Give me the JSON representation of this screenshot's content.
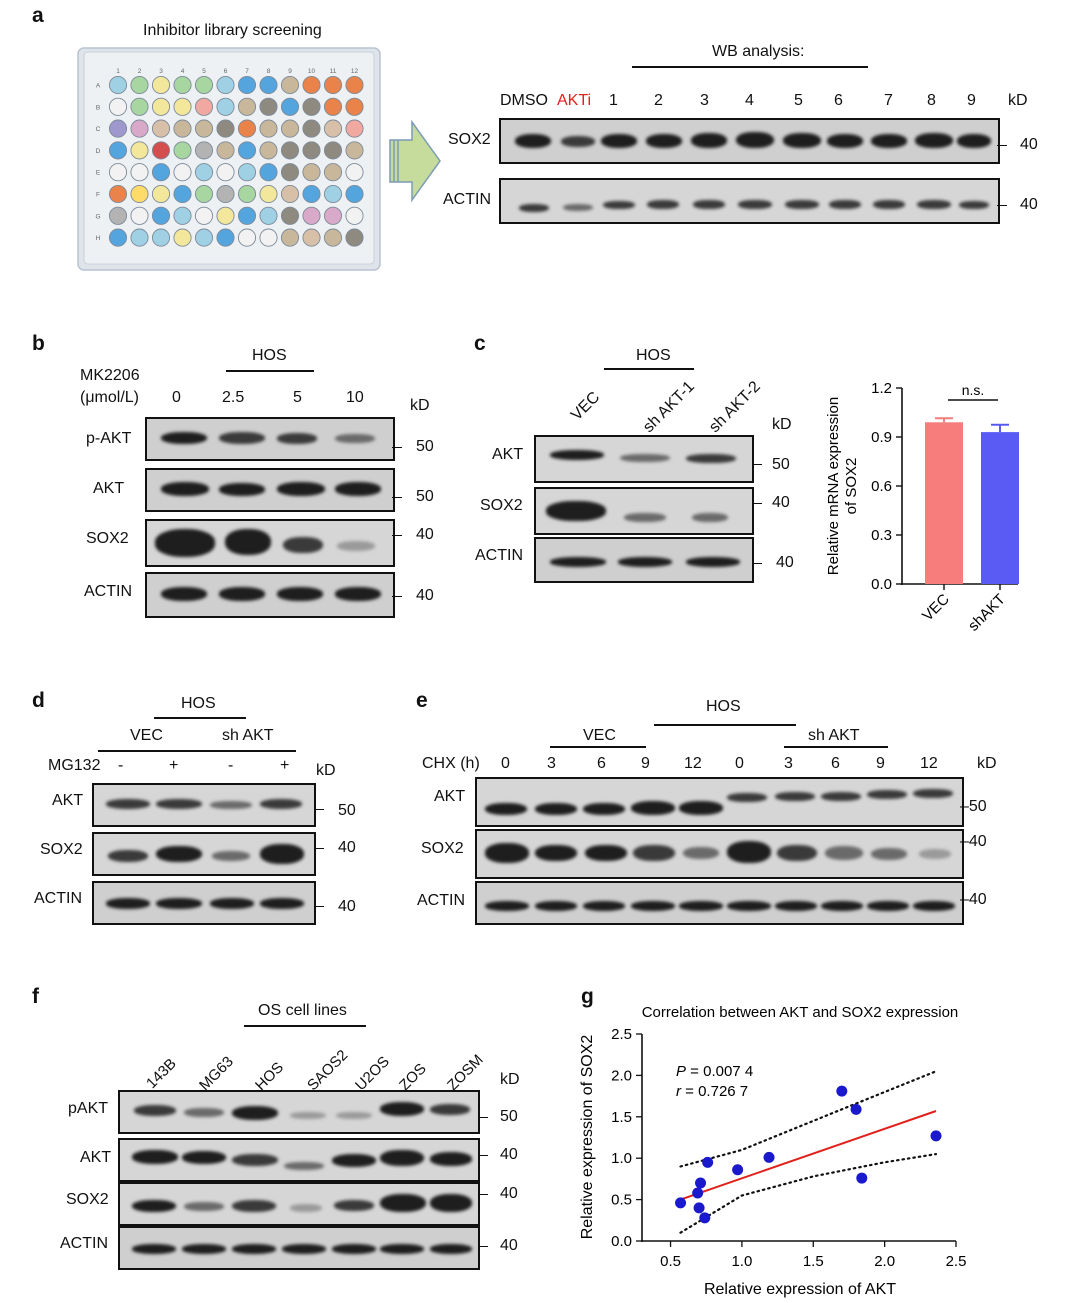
{
  "panels": {
    "a": {
      "label": "a",
      "plate_title": "Inhibitor library screening",
      "plate_cols": [
        "1",
        "2",
        "3",
        "4",
        "5",
        "6",
        "7",
        "8",
        "9",
        "10",
        "11",
        "12"
      ],
      "plate_rows": [
        "A",
        "B",
        "C",
        "D",
        "E",
        "F",
        "G",
        "H"
      ],
      "wb_title": "WB analysis:",
      "lanes": [
        "DMSO",
        "AKTi",
        "1",
        "2",
        "3",
        "4",
        "5",
        "6",
        "7",
        "8",
        "9"
      ],
      "kd": "kD",
      "proteins": [
        "SOX2",
        "ACTIN"
      ],
      "markers": [
        "40",
        "40"
      ],
      "akti_color": "#e0201b"
    },
    "b": {
      "label": "b",
      "cell": "HOS",
      "treatment_line1": "MK2206",
      "treatment_line2": "(μmol/L)",
      "doses": [
        "0",
        "2.5",
        "5",
        "10"
      ],
      "kd": "kD",
      "proteins": [
        "p-AKT",
        "AKT",
        "SOX2",
        "ACTIN"
      ],
      "markers": [
        "50",
        "50",
        "40",
        "40"
      ]
    },
    "c": {
      "label": "c",
      "cell": "HOS",
      "lanes": [
        "VEC",
        "sh AKT-1",
        "sh AKT-2"
      ],
      "kd": "kD",
      "proteins": [
        "AKT",
        "SOX2",
        "ACTIN"
      ],
      "markers": [
        "50",
        "40",
        "40"
      ]
    },
    "d": {
      "label": "d",
      "cell": "HOS",
      "groups": [
        "VEC",
        "sh AKT"
      ],
      "treatment": "MG132",
      "signs": [
        "-",
        "+",
        "-",
        "+"
      ],
      "kd": "kD",
      "proteins": [
        "AKT",
        "SOX2",
        "ACTIN"
      ],
      "markers": [
        "50",
        "40",
        "40"
      ]
    },
    "e": {
      "label": "e",
      "cell": "HOS",
      "groups": [
        "VEC",
        "sh AKT"
      ],
      "treatment": "CHX (h)",
      "times": [
        "0",
        "3",
        "6",
        "9",
        "12",
        "0",
        "3",
        "6",
        "9",
        "12"
      ],
      "kd": "kD",
      "proteins": [
        "AKT",
        "SOX2",
        "ACTIN"
      ],
      "markers": [
        "50",
        "40",
        "40"
      ]
    },
    "f": {
      "label": "f",
      "group_title": "OS cell lines",
      "lanes": [
        "143B",
        "MG63",
        "HOS",
        "SAOS2",
        "U2OS",
        "ZOS",
        "ZOSM"
      ],
      "kd": "kD",
      "proteins": [
        "pAKT",
        "AKT",
        "SOX2",
        "ACTIN"
      ],
      "markers": [
        "50",
        "40",
        "40",
        "40"
      ]
    },
    "g": {
      "label": "g"
    }
  },
  "chart_data": [
    {
      "panel": "c",
      "type": "bar",
      "categories": [
        "VEC",
        "shAKT"
      ],
      "values": [
        0.99,
        0.93
      ],
      "errors": [
        0.025,
        0.045
      ],
      "colors": [
        "#f77c7c",
        "#5a5af5"
      ],
      "ylabel": "Relative mRNA expression of SOX2",
      "ylabel_line1": "Relative mRNA expression",
      "ylabel_line2": "of SOX2",
      "ylim": [
        0,
        1.2
      ],
      "yticks": [
        "0.0",
        "0.3",
        "0.6",
        "0.9",
        "1.2"
      ],
      "annotation": "n.s."
    },
    {
      "panel": "g",
      "type": "scatter",
      "title": "Correlation between AKT and SOX2 expression",
      "xlabel": "Relative expression of AKT",
      "ylabel": "Relative expression of SOX2",
      "xlim": [
        0.3,
        2.5
      ],
      "ylim": [
        0,
        2.5
      ],
      "xticks": [
        "0.5",
        "1.0",
        "1.5",
        "2.0",
        "2.5"
      ],
      "yticks": [
        "0.0",
        "0.5",
        "1.0",
        "1.5",
        "2.0",
        "2.5"
      ],
      "points": [
        {
          "x": 0.57,
          "y": 0.46
        },
        {
          "x": 0.69,
          "y": 0.58
        },
        {
          "x": 0.7,
          "y": 0.4
        },
        {
          "x": 0.71,
          "y": 0.7
        },
        {
          "x": 0.74,
          "y": 0.28
        },
        {
          "x": 0.76,
          "y": 0.95
        },
        {
          "x": 0.97,
          "y": 0.86
        },
        {
          "x": 1.19,
          "y": 1.01
        },
        {
          "x": 1.7,
          "y": 1.81
        },
        {
          "x": 1.8,
          "y": 1.59
        },
        {
          "x": 1.84,
          "y": 0.76
        },
        {
          "x": 2.36,
          "y": 1.27
        }
      ],
      "fit_line": {
        "x0": 0.57,
        "y0": 0.5,
        "x1": 2.36,
        "y1": 1.57,
        "color": "#e0201b"
      },
      "ci_upper": [
        [
          0.57,
          0.9
        ],
        [
          1.0,
          1.1
        ],
        [
          1.5,
          1.45
        ],
        [
          2.0,
          1.8
        ],
        [
          2.36,
          2.05
        ]
      ],
      "ci_lower": [
        [
          0.57,
          0.1
        ],
        [
          1.0,
          0.55
        ],
        [
          1.5,
          0.78
        ],
        [
          2.0,
          0.95
        ],
        [
          2.36,
          1.05
        ]
      ],
      "stat_p_label": "P",
      "stat_p_value": " = 0.007 4",
      "stat_r_label": "r",
      "stat_r_value": " = 0.726 7",
      "point_color": "#1a1acc"
    }
  ]
}
